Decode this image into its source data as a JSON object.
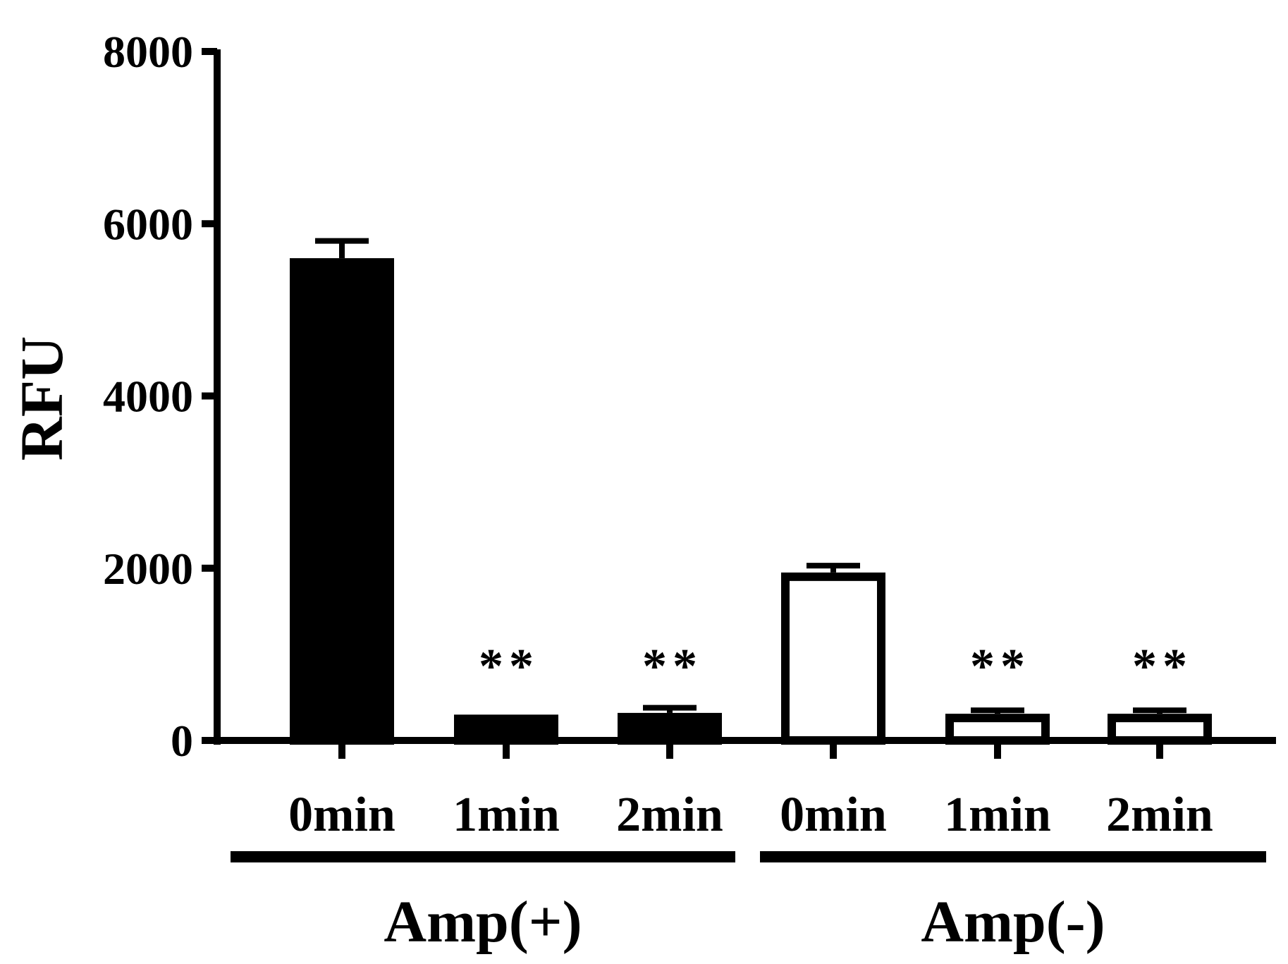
{
  "chart_data": {
    "type": "bar",
    "title": "",
    "xlabel": "",
    "ylabel": "RFU",
    "ylim": [
      0,
      8000
    ],
    "yticks": [
      "0",
      "2000",
      "4000",
      "6000",
      "8000"
    ],
    "categories": [
      "0min",
      "1min",
      "2min",
      "0min",
      "1min",
      "2min"
    ],
    "groups": [
      {
        "label": "Amp(+)",
        "categories": [
          0,
          1,
          2
        ]
      },
      {
        "label": "Amp(-)",
        "categories": [
          3,
          4,
          5
        ]
      }
    ],
    "bars": [
      {
        "category": "0min",
        "group": "Amp(+)",
        "value": 5600,
        "error": 200,
        "fill": "#000000",
        "sig": ""
      },
      {
        "category": "1min",
        "group": "Amp(+)",
        "value": 300,
        "error": 0,
        "fill": "#000000",
        "sig": "**"
      },
      {
        "category": "2min",
        "group": "Amp(+)",
        "value": 320,
        "error": 60,
        "fill": "#000000",
        "sig": "**"
      },
      {
        "category": "0min",
        "group": "Amp(-)",
        "value": 1950,
        "error": 80,
        "fill": "#ffffff",
        "sig": ""
      },
      {
        "category": "1min",
        "group": "Amp(-)",
        "value": 310,
        "error": 40,
        "fill": "#ffffff",
        "sig": "**"
      },
      {
        "category": "2min",
        "group": "Amp(-)",
        "value": 310,
        "error": 40,
        "fill": "#ffffff",
        "sig": "**"
      }
    ],
    "grid": false,
    "legend": "none"
  }
}
